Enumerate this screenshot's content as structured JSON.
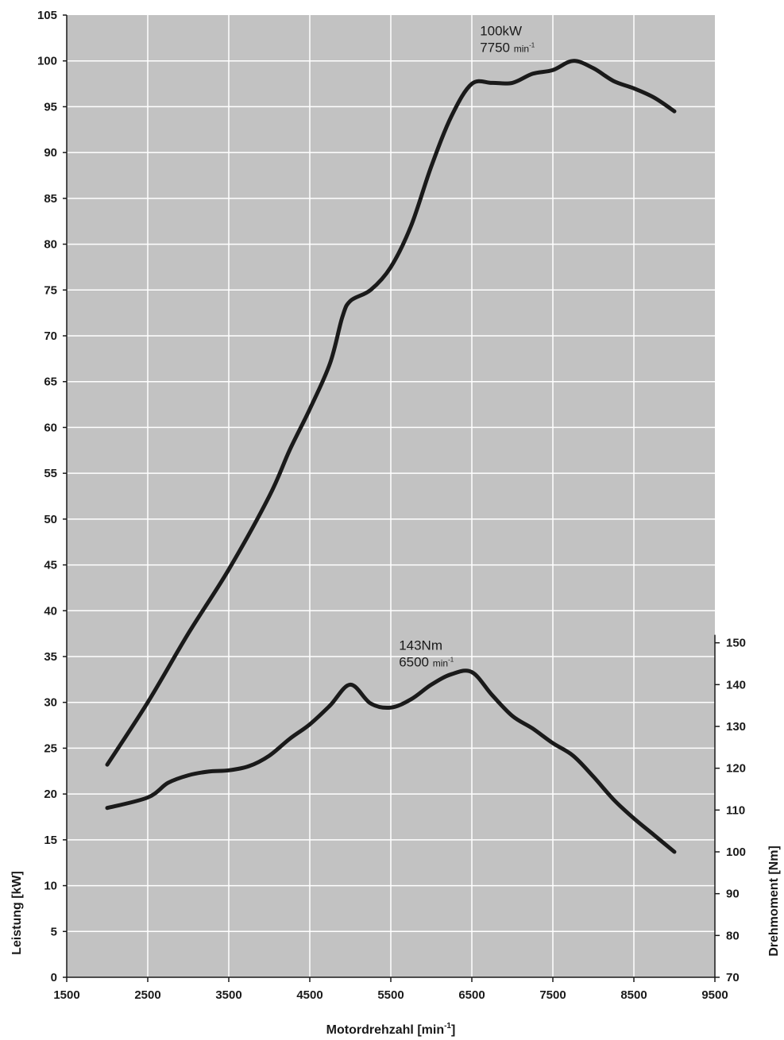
{
  "chart_data": {
    "type": "line",
    "title": "",
    "xlabel": "Motordrehzahl [min",
    "xlabel_sup": "-1",
    "xlabel_close": "]",
    "ylabel_left": "Leistung [kW]",
    "ylabel_right": "Drehmoment [Nm]",
    "xlim": [
      1500,
      9500
    ],
    "ylim_left": [
      0,
      105
    ],
    "ylim_right": [
      70,
      150
    ],
    "grid": true,
    "background_color": "#c2c2c2",
    "grid_color": "#ffffff",
    "line_color": "#1a1a1a",
    "x_ticks": [
      "1500",
      "2500",
      "3500",
      "4500",
      "5500",
      "6500",
      "7500",
      "8500",
      "9500"
    ],
    "y_left_ticks": [
      "0",
      "5",
      "10",
      "15",
      "20",
      "25",
      "30",
      "35",
      "40",
      "45",
      "50",
      "55",
      "60",
      "65",
      "70",
      "75",
      "80",
      "85",
      "90",
      "95",
      "100",
      "105"
    ],
    "y_right_ticks": [
      "70",
      "80",
      "90",
      "100",
      "110",
      "120",
      "130",
      "140",
      "150"
    ],
    "series": [
      {
        "axis": "left",
        "points": [
          [
            2000,
            23.2
          ],
          [
            2500,
            30
          ],
          [
            3000,
            37.5
          ],
          [
            3500,
            44.5
          ],
          [
            4000,
            52.5
          ],
          [
            4250,
            57.5
          ],
          [
            4500,
            62
          ],
          [
            4750,
            67
          ],
          [
            4900,
            72
          ],
          [
            5000,
            73.8
          ],
          [
            5250,
            75
          ],
          [
            5500,
            77.5
          ],
          [
            5750,
            82
          ],
          [
            6000,
            88.5
          ],
          [
            6250,
            94
          ],
          [
            6500,
            97.5
          ],
          [
            6750,
            97.6
          ],
          [
            7000,
            97.6
          ],
          [
            7250,
            98.6
          ],
          [
            7500,
            99
          ],
          [
            7750,
            100
          ],
          [
            8000,
            99.2
          ],
          [
            8250,
            97.8
          ],
          [
            8500,
            97
          ],
          [
            8750,
            96
          ],
          [
            9000,
            94.5
          ]
        ]
      },
      {
        "axis": "right",
        "points": [
          [
            2000,
            110.5
          ],
          [
            2500,
            113
          ],
          [
            2750,
            116.5
          ],
          [
            3000,
            118.3
          ],
          [
            3250,
            119.2
          ],
          [
            3500,
            119.5
          ],
          [
            3750,
            120.5
          ],
          [
            4000,
            123
          ],
          [
            4250,
            127
          ],
          [
            4500,
            130.5
          ],
          [
            4750,
            135
          ],
          [
            5000,
            140
          ],
          [
            5250,
            135.5
          ],
          [
            5500,
            134.5
          ],
          [
            5750,
            136.5
          ],
          [
            6000,
            140
          ],
          [
            6250,
            142.5
          ],
          [
            6500,
            143
          ],
          [
            6750,
            137.5
          ],
          [
            7000,
            132.5
          ],
          [
            7250,
            129.5
          ],
          [
            7500,
            126
          ],
          [
            7750,
            123
          ],
          [
            8000,
            118
          ],
          [
            8250,
            112.5
          ],
          [
            8500,
            108
          ],
          [
            8750,
            104
          ],
          [
            9000,
            100
          ]
        ]
      }
    ],
    "annotations": [
      {
        "line1": "100kW",
        "line2": "7750",
        "unit": "min",
        "unit_sup": "-1",
        "x": 6600,
        "y_axis": "left",
        "y": 102.8
      },
      {
        "line1": "143Nm",
        "line2": "6500",
        "unit": "min",
        "unit_sup": "-1",
        "x": 5600,
        "y_axis": "right",
        "y": 148.3
      }
    ]
  }
}
